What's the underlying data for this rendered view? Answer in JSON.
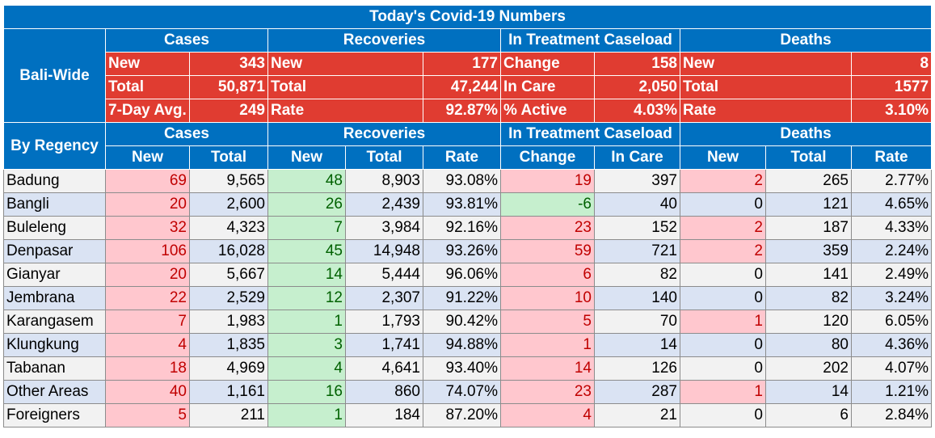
{
  "title": "Today's Covid-19 Numbers",
  "summary": {
    "side_label": "Bali-Wide",
    "sections": [
      "Cases",
      "Recoveries",
      "In Treatment Caseload",
      "Deaths"
    ],
    "rows": [
      [
        [
          "New",
          "343"
        ],
        [
          "New",
          "177"
        ],
        [
          "Change",
          "158"
        ],
        [
          "New",
          "8"
        ]
      ],
      [
        [
          "Total",
          "50,871"
        ],
        [
          "Total",
          "47,244"
        ],
        [
          "In Care",
          "2,050"
        ],
        [
          "Total",
          "1577"
        ]
      ],
      [
        [
          "7-Day Avg.",
          "249"
        ],
        [
          "Rate",
          "92.87%"
        ],
        [
          "% Active",
          "4.03%"
        ],
        [
          "Rate",
          "3.10%"
        ]
      ]
    ]
  },
  "regency": {
    "side_label": "By Regency",
    "sections": [
      "Cases",
      "Recoveries",
      "In Treatment Caseload",
      "Deaths"
    ],
    "columns": [
      "New",
      "Total",
      "New",
      "Total",
      "Rate",
      "Change",
      "In Care",
      "New",
      "Total",
      "Rate"
    ],
    "rows": [
      {
        "name": "Badung",
        "values": [
          "69",
          "9,565",
          "48",
          "8,903",
          "93.08%",
          "19",
          "397",
          "2",
          "265",
          "2.77%"
        ]
      },
      {
        "name": "Bangli",
        "values": [
          "20",
          "2,600",
          "26",
          "2,439",
          "93.81%",
          "-6",
          "40",
          "0",
          "121",
          "4.65%"
        ]
      },
      {
        "name": "Buleleng",
        "values": [
          "32",
          "4,323",
          "7",
          "3,984",
          "92.16%",
          "23",
          "152",
          "2",
          "187",
          "4.33%"
        ]
      },
      {
        "name": "Denpasar",
        "values": [
          "106",
          "16,028",
          "45",
          "14,948",
          "93.26%",
          "59",
          "721",
          "2",
          "359",
          "2.24%"
        ]
      },
      {
        "name": "Gianyar",
        "values": [
          "20",
          "5,667",
          "14",
          "5,444",
          "96.06%",
          "6",
          "82",
          "0",
          "141",
          "2.49%"
        ]
      },
      {
        "name": "Jembrana",
        "values": [
          "22",
          "2,529",
          "12",
          "2,307",
          "91.22%",
          "10",
          "140",
          "0",
          "82",
          "3.24%"
        ]
      },
      {
        "name": "Karangasem",
        "values": [
          "7",
          "1,983",
          "1",
          "1,793",
          "90.42%",
          "5",
          "70",
          "1",
          "120",
          "6.05%"
        ]
      },
      {
        "name": "Klungkung",
        "values": [
          "4",
          "1,835",
          "3",
          "1,741",
          "94.88%",
          "1",
          "14",
          "0",
          "80",
          "4.36%"
        ]
      },
      {
        "name": "Tabanan",
        "values": [
          "18",
          "4,969",
          "4",
          "4,641",
          "93.40%",
          "14",
          "126",
          "0",
          "202",
          "4.07%"
        ]
      },
      {
        "name": "Other Areas",
        "values": [
          "40",
          "1,161",
          "16",
          "860",
          "74.07%",
          "23",
          "287",
          "1",
          "14",
          "1.21%"
        ]
      },
      {
        "name": "Foreigners",
        "values": [
          "5",
          "211",
          "1",
          "184",
          "87.20%",
          "4",
          "21",
          "0",
          "6",
          "2.84%"
        ]
      }
    ]
  },
  "colors": {
    "header_blue": "#0070c0",
    "summary_red": "#e03c31",
    "pink_fill": "#ffc7ce",
    "green_fill": "#c6efce"
  }
}
